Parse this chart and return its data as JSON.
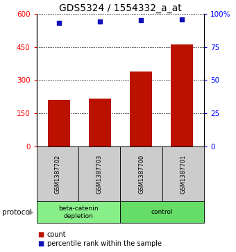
{
  "title": "GDS5324 / 1554332_a_at",
  "samples": [
    "GSM1387702",
    "GSM1387703",
    "GSM1387700",
    "GSM1387701"
  ],
  "bar_values": [
    210,
    215,
    340,
    460
  ],
  "percentile_values": [
    93,
    94,
    95,
    96
  ],
  "left_ylim": [
    0,
    600
  ],
  "left_yticks": [
    0,
    150,
    300,
    450,
    600
  ],
  "right_ylim": [
    0,
    100
  ],
  "right_yticks": [
    0,
    25,
    50,
    75,
    100
  ],
  "bar_color": "#bb1100",
  "dot_color": "#1111bb",
  "groups": [
    {
      "label": "beta-catenin\ndepletion",
      "indices": [
        0,
        1
      ],
      "color": "#88ee88"
    },
    {
      "label": "control",
      "indices": [
        2,
        3
      ],
      "color": "#66dd66"
    }
  ],
  "protocol_label": "protocol",
  "legend_items": [
    {
      "color": "#bb1100",
      "label": "count"
    },
    {
      "color": "#1111bb",
      "label": "percentile rank within the sample"
    }
  ],
  "sample_box_color": "#cccccc",
  "title_fontsize": 10
}
